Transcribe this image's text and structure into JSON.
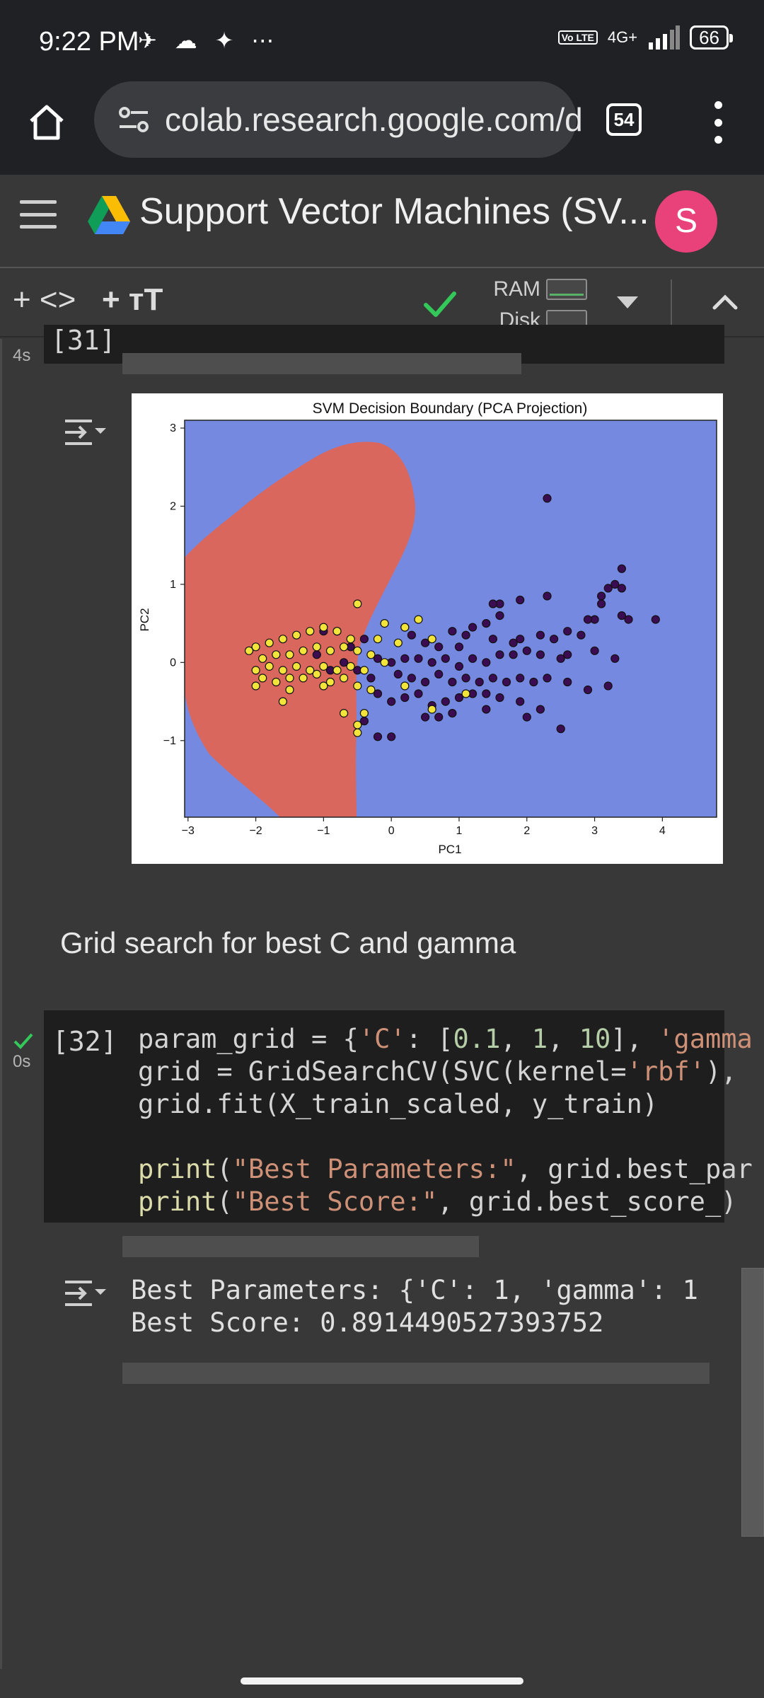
{
  "status_bar": {
    "time": "9:22 PM",
    "notification_icons": "✈ ☁ ✦ ⋯",
    "network": "4G+",
    "volte": "Vo LTE",
    "battery": "66"
  },
  "browser": {
    "url": "colab.research.google.com/d",
    "tab_count": "54"
  },
  "notebook": {
    "title": "Support Vector Machines (SV...",
    "avatar_letter": "S"
  },
  "toolbar": {
    "add_code": "+ <>",
    "add_text": "+ тT",
    "ram_label": "RAM",
    "disk_label": "Disk"
  },
  "cells": {
    "cell31": {
      "exec_time": "4s",
      "exec_count": "[31]"
    },
    "markdown": "Grid search for best C and gamma",
    "cell32": {
      "exec_time": "0s",
      "exec_count": "[32]",
      "code": {
        "l1a": "param_grid = {",
        "l1b": "'C'",
        "l1c": ": [",
        "l1d": "0.1",
        "l1e": ", ",
        "l1f": "1",
        "l1g": ", ",
        "l1h": "10",
        "l1i": "], ",
        "l1j": "'gamma",
        "l2a": "grid = GridSearchCV(SVC(kernel=",
        "l2b": "'rbf'",
        "l2c": "),",
        "l3": "grid.fit(X_train_scaled, y_train)",
        "l5a": "print",
        "l5b": "(",
        "l5c": "\"Best Parameters:\"",
        "l5d": ", grid.best_par",
        "l6a": "print",
        "l6b": "(",
        "l6c": "\"Best Score:\"",
        "l6d": ", grid.best_score_)"
      },
      "output": {
        "line1": "Best Parameters: {'C': 1, 'gamma': 1",
        "line2": "Best Score: 0.8914490527393752"
      }
    }
  },
  "chart_data": {
    "type": "scatter",
    "title": "SVM Decision Boundary (PCA Projection)",
    "xlabel": "PC1",
    "ylabel": "PC2",
    "xlim": [
      -3.05,
      4.8
    ],
    "ylim": [
      -1.98,
      3.1
    ],
    "x_ticks": [
      -3,
      -2,
      -1,
      0,
      1,
      2,
      3,
      4
    ],
    "y_ticks": [
      -1,
      0,
      1,
      2,
      3
    ],
    "y_tick_labels": [
      "−1",
      "0",
      "1",
      "2",
      "3"
    ],
    "x_tick_labels": [
      "−3",
      "−2",
      "−1",
      "0",
      "1",
      "2",
      "3",
      "4"
    ],
    "grid": false,
    "colors": {
      "background_region": "#7589e0",
      "decision_region": "#d9675e",
      "class_0": "#3b0c52",
      "class_1": "#f2e43a"
    },
    "series": [
      {
        "points": [
          [
            2.3,
            2.1
          ],
          [
            3.4,
            1.2
          ],
          [
            3.3,
            1.0
          ],
          [
            3.2,
            0.95
          ],
          [
            3.4,
            0.95
          ],
          [
            3.1,
            0.85
          ],
          [
            3.1,
            0.75
          ],
          [
            3.5,
            0.55
          ],
          [
            3.4,
            0.6
          ],
          [
            3.9,
            0.55
          ],
          [
            3.0,
            0.55
          ],
          [
            2.9,
            0.55
          ],
          [
            2.3,
            0.85
          ],
          [
            1.9,
            0.8
          ],
          [
            1.6,
            0.75
          ],
          [
            1.5,
            0.75
          ],
          [
            1.6,
            0.6
          ],
          [
            1.4,
            0.5
          ],
          [
            1.2,
            0.45
          ],
          [
            1.1,
            0.35
          ],
          [
            0.9,
            0.4
          ],
          [
            1.0,
            0.2
          ],
          [
            0.7,
            0.2
          ],
          [
            0.5,
            0.25
          ],
          [
            0.3,
            0.35
          ],
          [
            0.2,
            0.45
          ],
          [
            1.5,
            0.3
          ],
          [
            1.8,
            0.25
          ],
          [
            1.9,
            0.3
          ],
          [
            2.2,
            0.35
          ],
          [
            2.4,
            0.3
          ],
          [
            2.6,
            0.4
          ],
          [
            2.6,
            0.1
          ],
          [
            2.5,
            0.05
          ],
          [
            2.8,
            0.35
          ],
          [
            3.0,
            0.15
          ],
          [
            3.3,
            0.05
          ],
          [
            2.2,
            0.1
          ],
          [
            2.0,
            0.15
          ],
          [
            1.8,
            0.1
          ],
          [
            1.6,
            0.1
          ],
          [
            1.4,
            0.0
          ],
          [
            1.2,
            0.05
          ],
          [
            1.0,
            -0.05
          ],
          [
            0.8,
            0.05
          ],
          [
            0.6,
            0.0
          ],
          [
            0.4,
            0.05
          ],
          [
            0.2,
            0.05
          ],
          [
            0.0,
            0.0
          ],
          [
            -0.2,
            0.05
          ],
          [
            0.1,
            -0.15
          ],
          [
            0.3,
            -0.2
          ],
          [
            0.5,
            -0.25
          ],
          [
            0.7,
            -0.15
          ],
          [
            0.9,
            -0.25
          ],
          [
            1.1,
            -0.2
          ],
          [
            1.3,
            -0.25
          ],
          [
            1.5,
            -0.2
          ],
          [
            1.7,
            -0.25
          ],
          [
            1.9,
            -0.2
          ],
          [
            2.1,
            -0.25
          ],
          [
            2.3,
            -0.2
          ],
          [
            2.6,
            -0.25
          ],
          [
            2.9,
            -0.35
          ],
          [
            3.2,
            -0.3
          ],
          [
            1.6,
            -0.45
          ],
          [
            1.4,
            -0.4
          ],
          [
            1.2,
            -0.4
          ],
          [
            1.0,
            -0.45
          ],
          [
            0.8,
            -0.5
          ],
          [
            0.6,
            -0.55
          ],
          [
            0.4,
            -0.4
          ],
          [
            0.2,
            -0.45
          ],
          [
            0.0,
            -0.5
          ],
          [
            -0.2,
            -0.4
          ],
          [
            0.5,
            -0.7
          ],
          [
            0.7,
            -0.7
          ],
          [
            0.9,
            -0.65
          ],
          [
            1.4,
            -0.6
          ],
          [
            1.9,
            -0.5
          ],
          [
            2.0,
            -0.7
          ],
          [
            2.2,
            -0.6
          ],
          [
            2.5,
            -0.85
          ],
          [
            0.0,
            -0.95
          ],
          [
            -0.2,
            -0.95
          ],
          [
            -0.4,
            -0.75
          ],
          [
            -1.0,
            0.4
          ],
          [
            -0.8,
            0.4
          ],
          [
            -0.6,
            0.2
          ],
          [
            -0.4,
            0.3
          ],
          [
            -0.5,
            -0.1
          ],
          [
            -0.3,
            -0.2
          ],
          [
            -1.1,
            0.1
          ],
          [
            -0.9,
            -0.1
          ],
          [
            -0.7,
            0.0
          ]
        ],
        "class": 0
      },
      {
        "points": [
          [
            -0.5,
            0.75
          ],
          [
            0.4,
            0.55
          ],
          [
            -0.1,
            0.5
          ],
          [
            0.2,
            0.45
          ],
          [
            -0.2,
            0.3
          ],
          [
            -0.6,
            0.3
          ],
          [
            -0.8,
            0.4
          ],
          [
            -1.0,
            0.45
          ],
          [
            -1.2,
            0.4
          ],
          [
            -1.4,
            0.35
          ],
          [
            -1.6,
            0.3
          ],
          [
            -1.8,
            0.25
          ],
          [
            -2.0,
            0.2
          ],
          [
            -1.9,
            0.05
          ],
          [
            -1.7,
            0.1
          ],
          [
            -1.5,
            0.1
          ],
          [
            -1.3,
            0.15
          ],
          [
            -1.1,
            0.2
          ],
          [
            -0.9,
            0.15
          ],
          [
            -0.7,
            0.2
          ],
          [
            -0.5,
            0.15
          ],
          [
            -0.3,
            0.1
          ],
          [
            -2.1,
            0.15
          ],
          [
            -2.0,
            -0.1
          ],
          [
            -1.8,
            -0.05
          ],
          [
            -1.6,
            -0.1
          ],
          [
            -1.4,
            -0.05
          ],
          [
            -1.2,
            -0.1
          ],
          [
            -1.0,
            -0.05
          ],
          [
            -0.8,
            -0.1
          ],
          [
            -0.6,
            -0.05
          ],
          [
            -0.4,
            -0.1
          ],
          [
            -1.9,
            -0.2
          ],
          [
            -1.7,
            -0.25
          ],
          [
            -1.5,
            -0.2
          ],
          [
            -1.3,
            -0.2
          ],
          [
            -1.1,
            -0.15
          ],
          [
            -0.9,
            -0.25
          ],
          [
            -0.7,
            -0.2
          ],
          [
            -0.5,
            -0.3
          ],
          [
            -0.3,
            -0.35
          ],
          [
            -2.0,
            -0.3
          ],
          [
            -1.5,
            -0.35
          ],
          [
            -1.0,
            -0.3
          ],
          [
            -1.6,
            -0.5
          ],
          [
            -0.7,
            -0.65
          ],
          [
            -0.4,
            -0.65
          ],
          [
            -0.5,
            -0.8
          ],
          [
            -0.5,
            -0.9
          ],
          [
            0.6,
            -0.6
          ],
          [
            1.1,
            -0.4
          ],
          [
            0.6,
            0.3
          ],
          [
            0.1,
            0.25
          ],
          [
            -0.1,
            0.0
          ],
          [
            0.2,
            -0.3
          ]
        ],
        "class": 1
      }
    ]
  }
}
